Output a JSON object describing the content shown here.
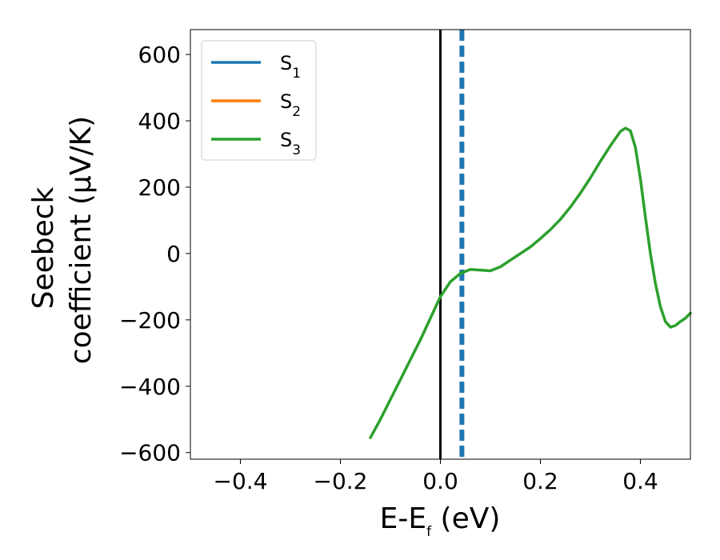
{
  "chart_data": {
    "type": "line",
    "xlabel": {
      "main": "E-E",
      "sub": "f",
      "unit": " (eV)"
    },
    "ylabel": {
      "line1": "Seebeck",
      "line2": "coefficient  (μV/K)"
    },
    "xlim": [
      -0.5,
      0.5
    ],
    "ylim": [
      -620,
      675
    ],
    "xticks": [
      -0.4,
      -0.2,
      0.0,
      0.2,
      0.4
    ],
    "xtick_labels": [
      "−0.4",
      "−0.2",
      "0.0",
      "0.2",
      "0.4"
    ],
    "yticks": [
      -600,
      -400,
      -200,
      0,
      200,
      400,
      600
    ],
    "ytick_labels": [
      "−600",
      "−400",
      "−200",
      "0",
      "200",
      "400",
      "600"
    ],
    "legend_position": "top-left",
    "series": [
      {
        "name": "S",
        "sub": "1",
        "color": "#1f77b4",
        "x": [],
        "y": []
      },
      {
        "name": "S",
        "sub": "2",
        "color": "#ff7f0e",
        "x": [],
        "y": []
      },
      {
        "name": "S",
        "sub": "3",
        "color": "#2ca02c",
        "x": [
          -0.14,
          -0.12,
          -0.1,
          -0.08,
          -0.06,
          -0.04,
          -0.02,
          0.0,
          0.02,
          0.04,
          0.06,
          0.08,
          0.1,
          0.12,
          0.14,
          0.16,
          0.18,
          0.2,
          0.22,
          0.24,
          0.26,
          0.28,
          0.3,
          0.32,
          0.34,
          0.36,
          0.37,
          0.38,
          0.39,
          0.4,
          0.41,
          0.42,
          0.43,
          0.44,
          0.45,
          0.46,
          0.47,
          0.48,
          0.49,
          0.5
        ],
        "y": [
          -555,
          -500,
          -440,
          -380,
          -320,
          -260,
          -195,
          -130,
          -85,
          -60,
          -48,
          -50,
          -52,
          -40,
          -20,
          0,
          20,
          45,
          72,
          103,
          140,
          182,
          228,
          278,
          325,
          368,
          378,
          370,
          320,
          225,
          110,
          0,
          -90,
          -160,
          -205,
          -222,
          -217,
          -205,
          -195,
          -180
        ]
      }
    ],
    "vlines": [
      {
        "x": 0.0,
        "color": "#000000",
        "style": "solid"
      },
      {
        "x": 0.043,
        "color": "#1f77b4",
        "style": "dashed"
      }
    ]
  }
}
